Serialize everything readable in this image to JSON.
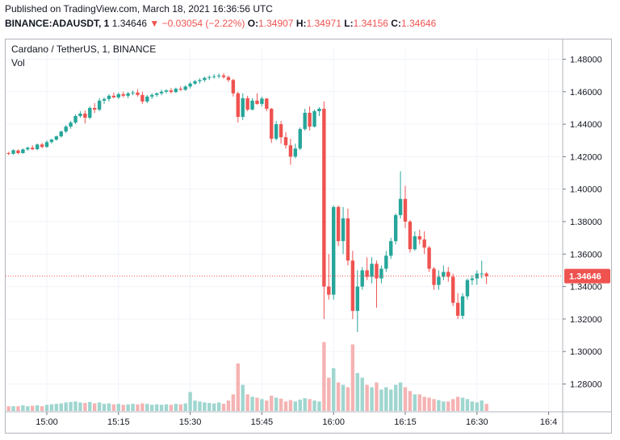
{
  "header": {
    "published": "Published on TradingView.com, March 18, 2021 16:36:56 UTC",
    "symbol": "BINANCE:ADAUSDT, 1",
    "last": "1.34646",
    "change": "−0.03054 (−2.22%)",
    "open_label": "O:",
    "open": "1.34907",
    "high_label": "H:",
    "high": "1.34971",
    "low_label": "L:",
    "low": "1.34156",
    "close_label": "C:",
    "close": "1.34646"
  },
  "chart_title": "Cardano / TetherUS, 1, BINANCE",
  "volume_label": "Vol",
  "colors": {
    "up": "#26a69a",
    "down": "#ef5350",
    "up_vol": "#9fd6cf",
    "down_vol": "#f5b3b3",
    "grid": "#f0f3fa",
    "price_line": "#ef5350"
  },
  "chart_data": {
    "type": "candlestick",
    "ylim": [
      1.265,
      1.485
    ],
    "y_ticks": [
      "1.48000",
      "1.46000",
      "1.44000",
      "1.42000",
      "1.40000",
      "1.38000",
      "1.36000",
      "1.34000",
      "1.32000",
      "1.30000",
      "1.28000"
    ],
    "y_tick_values": [
      1.48,
      1.46,
      1.44,
      1.42,
      1.4,
      1.38,
      1.36,
      1.34,
      1.32,
      1.3,
      1.28
    ],
    "x_ticks": [
      "15:00",
      "15:15",
      "15:30",
      "15:45",
      "16:00",
      "16:15",
      "16:30",
      "16:4"
    ],
    "x_tick_minutes": [
      0,
      15,
      30,
      45,
      60,
      75,
      90,
      105
    ],
    "last_price": 1.34646,
    "last_price_label": "1.34646",
    "candles": [
      [
        -8,
        1.4222,
        1.423,
        1.421,
        1.4218,
        1.0
      ],
      [
        -7,
        1.4218,
        1.4245,
        1.4212,
        1.424,
        1.0
      ],
      [
        -6,
        1.4238,
        1.4245,
        1.4215,
        1.4222,
        1.0
      ],
      [
        -5,
        1.4222,
        1.425,
        1.4218,
        1.4245,
        1.2
      ],
      [
        -4,
        1.4245,
        1.4262,
        1.4236,
        1.4255,
        1.0
      ],
      [
        -3,
        1.4255,
        1.427,
        1.424,
        1.4246,
        1.1
      ],
      [
        -2,
        1.4246,
        1.428,
        1.424,
        1.4275,
        1.2
      ],
      [
        -1,
        1.4275,
        1.4285,
        1.4252,
        1.426,
        1.0
      ],
      [
        0,
        1.426,
        1.43,
        1.4255,
        1.429,
        1.3
      ],
      [
        1,
        1.429,
        1.431,
        1.428,
        1.4305,
        1.4
      ],
      [
        2,
        1.4305,
        1.433,
        1.4298,
        1.4325,
        1.5
      ],
      [
        3,
        1.4325,
        1.436,
        1.4318,
        1.4355,
        1.6
      ],
      [
        4,
        1.4355,
        1.4395,
        1.4345,
        1.4385,
        1.8
      ],
      [
        5,
        1.4385,
        1.442,
        1.4372,
        1.441,
        1.9
      ],
      [
        6,
        1.441,
        1.446,
        1.44,
        1.445,
        2.0
      ],
      [
        7,
        1.445,
        1.448,
        1.444,
        1.4465,
        1.8
      ],
      [
        8,
        1.4465,
        1.4485,
        1.4405,
        1.444,
        1.7
      ],
      [
        9,
        1.444,
        1.451,
        1.443,
        1.45,
        1.9
      ],
      [
        10,
        1.45,
        1.453,
        1.447,
        1.449,
        1.6
      ],
      [
        11,
        1.449,
        1.456,
        1.448,
        1.4545,
        1.8
      ],
      [
        12,
        1.4545,
        1.4565,
        1.4525,
        1.4555,
        1.5
      ],
      [
        13,
        1.4555,
        1.4585,
        1.454,
        1.4575,
        1.6
      ],
      [
        14,
        1.4575,
        1.4595,
        1.456,
        1.4565,
        1.4
      ],
      [
        15,
        1.4565,
        1.4595,
        1.4555,
        1.4585,
        1.5
      ],
      [
        16,
        1.4585,
        1.46,
        1.4565,
        1.4575,
        1.3
      ],
      [
        17,
        1.4575,
        1.4598,
        1.456,
        1.459,
        1.4
      ],
      [
        18,
        1.459,
        1.4608,
        1.4578,
        1.4595,
        1.5
      ],
      [
        19,
        1.4595,
        1.4615,
        1.457,
        1.458,
        1.4
      ],
      [
        20,
        1.458,
        1.46,
        1.4525,
        1.454,
        1.6
      ],
      [
        21,
        1.454,
        1.458,
        1.453,
        1.457,
        1.5
      ],
      [
        22,
        1.457,
        1.459,
        1.4555,
        1.458,
        1.3
      ],
      [
        23,
        1.458,
        1.4595,
        1.4568,
        1.459,
        1.4
      ],
      [
        24,
        1.459,
        1.4612,
        1.4578,
        1.46,
        1.3
      ],
      [
        25,
        1.46,
        1.4615,
        1.459,
        1.4608,
        1.4
      ],
      [
        26,
        1.4608,
        1.4622,
        1.459,
        1.4598,
        1.3
      ],
      [
        27,
        1.4598,
        1.4625,
        1.4592,
        1.4618,
        1.5
      ],
      [
        28,
        1.4618,
        1.4632,
        1.4605,
        1.4612,
        1.4
      ],
      [
        29,
        1.4612,
        1.464,
        1.4605,
        1.4632,
        1.6
      ],
      [
        30,
        1.4632,
        1.466,
        1.462,
        1.465,
        4.0
      ],
      [
        31,
        1.465,
        1.4672,
        1.4642,
        1.4665,
        2.2
      ],
      [
        32,
        1.4665,
        1.4682,
        1.465,
        1.4672,
        2.0
      ],
      [
        33,
        1.4672,
        1.4692,
        1.466,
        1.4685,
        1.8
      ],
      [
        34,
        1.4685,
        1.47,
        1.4672,
        1.469,
        1.7
      ],
      [
        35,
        1.469,
        1.4708,
        1.468,
        1.4695,
        1.6
      ],
      [
        36,
        1.4695,
        1.4712,
        1.4682,
        1.47,
        1.8
      ],
      [
        37,
        1.47,
        1.4715,
        1.468,
        1.469,
        1.5
      ],
      [
        38,
        1.469,
        1.47,
        1.466,
        1.4672,
        2.2
      ],
      [
        39,
        1.4672,
        1.468,
        1.457,
        1.459,
        3.5
      ],
      [
        40,
        1.459,
        1.46,
        1.441,
        1.4445,
        10.0
      ],
      [
        41,
        1.4445,
        1.459,
        1.4425,
        1.456,
        5.5
      ],
      [
        42,
        1.456,
        1.4575,
        1.448,
        1.449,
        3.5
      ],
      [
        43,
        1.449,
        1.456,
        1.4485,
        1.4545,
        3.0
      ],
      [
        44,
        1.4545,
        1.459,
        1.452,
        1.4525,
        2.8
      ],
      [
        45,
        1.4525,
        1.457,
        1.451,
        1.4558,
        2.5
      ],
      [
        46,
        1.4558,
        1.456,
        1.448,
        1.4495,
        2.2
      ],
      [
        47,
        1.4495,
        1.45,
        1.4285,
        1.431,
        3.2
      ],
      [
        48,
        1.431,
        1.442,
        1.43,
        1.44,
        2.8
      ],
      [
        49,
        1.44,
        1.442,
        1.428,
        1.432,
        2.6
      ],
      [
        50,
        1.432,
        1.435,
        1.425,
        1.427,
        2.0
      ],
      [
        51,
        1.427,
        1.431,
        1.415,
        1.42,
        2.3
      ],
      [
        52,
        1.42,
        1.428,
        1.419,
        1.425,
        2.0
      ],
      [
        53,
        1.425,
        1.438,
        1.424,
        1.437,
        2.4
      ],
      [
        54,
        1.437,
        1.4495,
        1.436,
        1.447,
        2.7
      ],
      [
        55,
        1.447,
        1.451,
        1.436,
        1.4385,
        2.5
      ],
      [
        56,
        1.4385,
        1.449,
        1.438,
        1.448,
        2.2
      ],
      [
        57,
        1.448,
        1.4505,
        1.445,
        1.4495,
        2.0
      ],
      [
        58,
        1.4495,
        1.454,
        1.32,
        1.34,
        14.5
      ],
      [
        59,
        1.34,
        1.36,
        1.332,
        1.335,
        7.0
      ],
      [
        60,
        1.335,
        1.39,
        1.332,
        1.389,
        9.0
      ],
      [
        61,
        1.389,
        1.39,
        1.365,
        1.368,
        6.0
      ],
      [
        62,
        1.368,
        1.389,
        1.36,
        1.382,
        5.5
      ],
      [
        63,
        1.382,
        1.388,
        1.353,
        1.356,
        5.0
      ],
      [
        64,
        1.356,
        1.362,
        1.32,
        1.325,
        14.0
      ],
      [
        65,
        1.325,
        1.35,
        1.312,
        1.34,
        8.0
      ],
      [
        66,
        1.34,
        1.352,
        1.338,
        1.35,
        7.0
      ],
      [
        67,
        1.35,
        1.358,
        1.344,
        1.346,
        5.5
      ],
      [
        68,
        1.346,
        1.358,
        1.342,
        1.354,
        5.0
      ],
      [
        69,
        1.354,
        1.356,
        1.327,
        1.345,
        6.0
      ],
      [
        70,
        1.345,
        1.353,
        1.342,
        1.351,
        4.5
      ],
      [
        71,
        1.351,
        1.362,
        1.349,
        1.359,
        5.0
      ],
      [
        72,
        1.359,
        1.37,
        1.357,
        1.368,
        4.5
      ],
      [
        73,
        1.368,
        1.385,
        1.366,
        1.384,
        5.5
      ],
      [
        74,
        1.384,
        1.411,
        1.382,
        1.394,
        6.0
      ],
      [
        75,
        1.394,
        1.402,
        1.376,
        1.38,
        5.0
      ],
      [
        76,
        1.38,
        1.381,
        1.361,
        1.363,
        4.2
      ],
      [
        77,
        1.363,
        1.374,
        1.362,
        1.371,
        3.5
      ],
      [
        78,
        1.371,
        1.375,
        1.366,
        1.369,
        3.5
      ],
      [
        79,
        1.369,
        1.374,
        1.36,
        1.364,
        3.0
      ],
      [
        80,
        1.364,
        1.365,
        1.349,
        1.351,
        2.8
      ],
      [
        81,
        1.351,
        1.352,
        1.338,
        1.341,
        2.5
      ],
      [
        82,
        1.341,
        1.35,
        1.338,
        1.346,
        2.3
      ],
      [
        83,
        1.346,
        1.353,
        1.344,
        1.349,
        2.0
      ],
      [
        84,
        1.349,
        1.352,
        1.343,
        1.346,
        2.0
      ],
      [
        85,
        1.346,
        1.348,
        1.328,
        1.33,
        2.5
      ],
      [
        86,
        1.33,
        1.336,
        1.32,
        1.322,
        3.0
      ],
      [
        87,
        1.322,
        1.336,
        1.32,
        1.334,
        2.8
      ],
      [
        88,
        1.334,
        1.345,
        1.332,
        1.344,
        2.5
      ],
      [
        89,
        1.344,
        1.347,
        1.341,
        1.345,
        2.0
      ],
      [
        90,
        1.345,
        1.35,
        1.341,
        1.348,
        1.8
      ],
      [
        91,
        1.348,
        1.356,
        1.345,
        1.348,
        2.2
      ],
      [
        92,
        1.348,
        1.349,
        1.3415,
        1.3465,
        1.5
      ]
    ]
  }
}
